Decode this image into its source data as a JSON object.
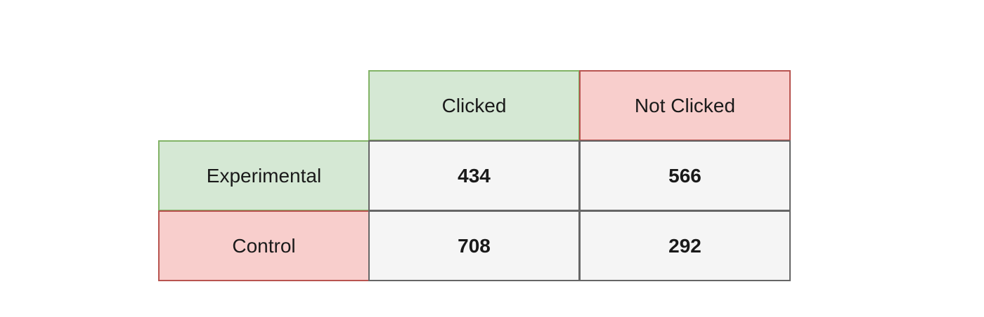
{
  "colors": {
    "positive_fill": "#d5e8d4",
    "positive_border": "#82b366",
    "negative_fill": "#f8cecc",
    "negative_border": "#b85450",
    "data_fill": "#f5f5f5",
    "data_border": "#666666"
  },
  "table": {
    "columns": [
      "Clicked",
      "Not Clicked"
    ],
    "rows": [
      {
        "label": "Experimental",
        "values": [
          "434",
          "566"
        ]
      },
      {
        "label": "Control",
        "values": [
          "708",
          "292"
        ]
      }
    ]
  }
}
